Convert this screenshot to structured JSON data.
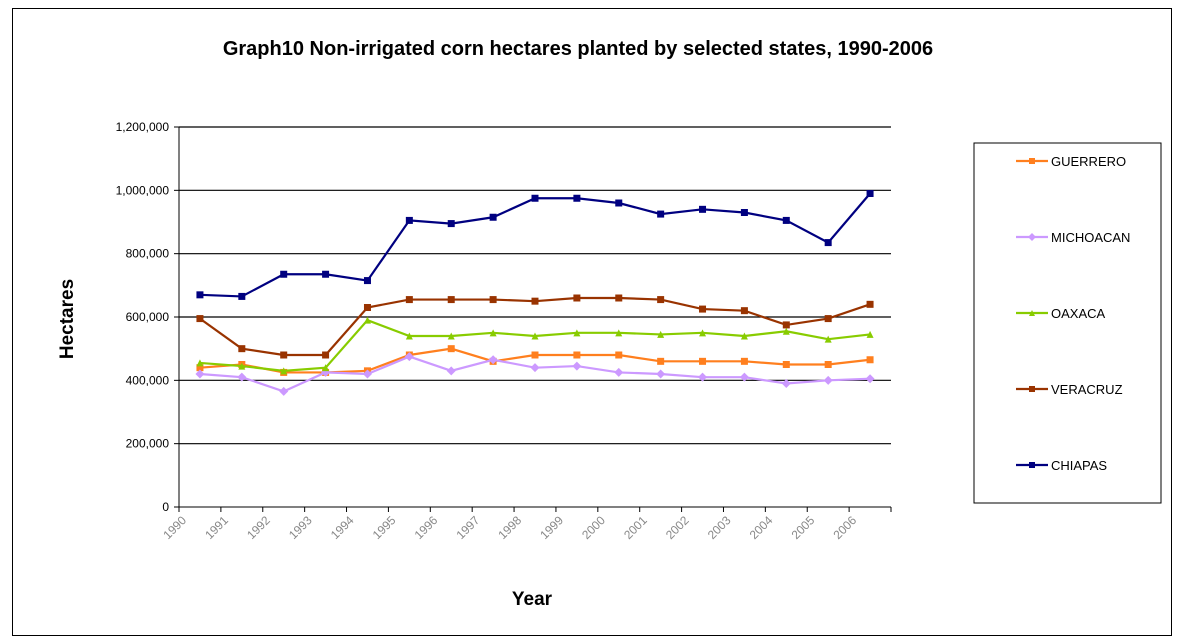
{
  "chart_data": {
    "type": "line",
    "title": "Graph10 Non-irrigated corn hectares planted by selected states, 1990-2006",
    "xlabel": "Year",
    "ylabel": "Hectares",
    "categories": [
      "1990",
      "1991",
      "1992",
      "1993",
      "1994",
      "1995",
      "1996",
      "1997",
      "1998",
      "1999",
      "2000",
      "2001",
      "2002",
      "2003",
      "2004",
      "2005",
      "2006"
    ],
    "ylim": [
      0,
      1200000
    ],
    "yticks": [
      0,
      200000,
      400000,
      600000,
      800000,
      1000000,
      1200000
    ],
    "ytick_labels": [
      "0",
      "200,000",
      "400,000",
      "600,000",
      "800,000",
      "1,000,000",
      "1,200,000"
    ],
    "grid": "horizontal major",
    "legend_position": "right",
    "series": [
      {
        "name": "GUERRERO",
        "color": "#ff7f1e",
        "marker": "square",
        "values": [
          440000,
          450000,
          425000,
          425000,
          430000,
          480000,
          500000,
          460000,
          480000,
          480000,
          480000,
          460000,
          460000,
          460000,
          450000,
          450000,
          465000
        ]
      },
      {
        "name": "MICHOACAN",
        "color": "#cc99ff",
        "marker": "diamond",
        "values": [
          420000,
          410000,
          365000,
          425000,
          420000,
          475000,
          430000,
          465000,
          440000,
          445000,
          425000,
          420000,
          410000,
          410000,
          390000,
          400000,
          405000
        ]
      },
      {
        "name": "OAXACA",
        "color": "#88cc00",
        "marker": "triangle",
        "values": [
          455000,
          445000,
          430000,
          440000,
          590000,
          540000,
          540000,
          550000,
          540000,
          550000,
          550000,
          545000,
          550000,
          540000,
          555000,
          530000,
          545000
        ]
      },
      {
        "name": "VERACRUZ",
        "color": "#993300",
        "marker": "square",
        "values": [
          595000,
          500000,
          480000,
          480000,
          630000,
          655000,
          655000,
          655000,
          650000,
          660000,
          660000,
          655000,
          625000,
          620000,
          575000,
          595000,
          640000
        ]
      },
      {
        "name": "CHIAPAS",
        "color": "#000080",
        "marker": "square",
        "values": [
          670000,
          665000,
          735000,
          735000,
          715000,
          905000,
          895000,
          915000,
          975000,
          975000,
          960000,
          925000,
          940000,
          930000,
          905000,
          835000,
          990000
        ]
      }
    ]
  }
}
